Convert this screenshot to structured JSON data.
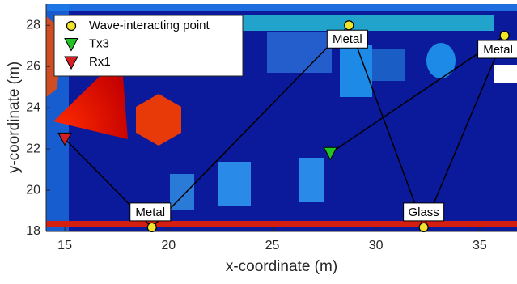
{
  "chart_data": {
    "type": "scatter",
    "xlabel": "x-coordinate (m)",
    "ylabel": "y-coordinate (m)",
    "xlim": [
      14.1,
      36.8
    ],
    "ylim": [
      18,
      29.03
    ],
    "xticks": [
      15,
      20,
      25,
      30,
      35
    ],
    "yticks": [
      18,
      20,
      22,
      24,
      26,
      28
    ],
    "series": [
      {
        "name": "Wave-interacting point",
        "color": "#f2e52a",
        "marker": "circle",
        "x": [
          19.2,
          28.7,
          32.3,
          36.2
        ],
        "y": [
          18.2,
          28.0,
          18.2,
          27.5
        ],
        "point_labels": [
          "Metal",
          "Metal",
          "Glass",
          "Metal"
        ]
      },
      {
        "name": "Tx3",
        "color": "#22c422",
        "marker": "triangle-down",
        "x": [
          27.8
        ],
        "y": [
          21.8
        ]
      },
      {
        "name": "Rx1",
        "color": "#d42020",
        "marker": "triangle-down",
        "x": [
          15.0
        ],
        "y": [
          22.5
        ]
      }
    ]
  }
}
